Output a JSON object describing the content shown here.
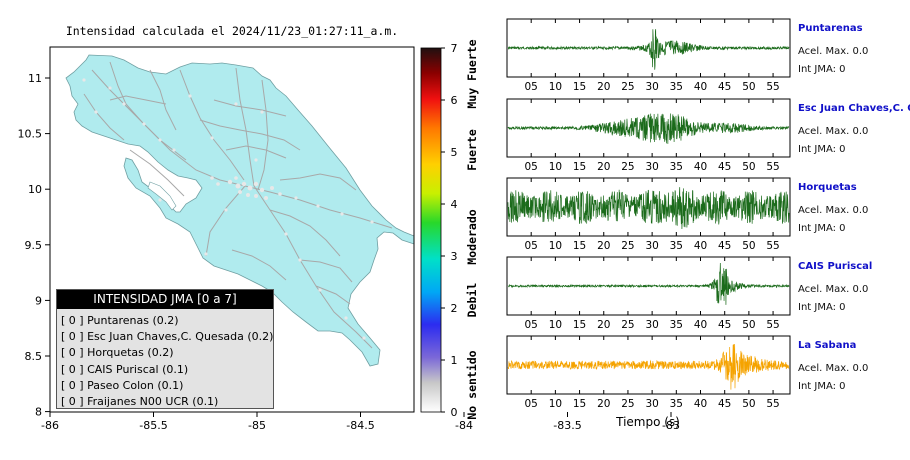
{
  "map": {
    "title": "Intensidad calculada el 2024/11/23_01:27:11_a.m.",
    "x_ticks": [
      "-86",
      "-85.5",
      "-85",
      "-84.5",
      "-84",
      "-83.5",
      "-83"
    ],
    "y_ticks": [
      "11",
      "10.5",
      "10",
      "9.5",
      "9",
      "8.5",
      "8"
    ],
    "colorbar": {
      "ticks": [
        "0",
        "1",
        "2",
        "3",
        "4",
        "5",
        "6",
        "7"
      ],
      "labels": [
        "No sentido",
        "Debil",
        "Moderado",
        "Fuerte",
        "Muy Fuerte"
      ]
    },
    "legend": {
      "title": "INTENSIDAD JMA [0 a 7]",
      "items": [
        "[ 0 ] Puntarenas (0.2)",
        "[ 0 ] Esc Juan Chaves,C. Quesada (0.2)",
        "[ 0 ] Horquetas (0.2)",
        "[ 0 ] CAIS Puriscal (0.1)",
        "[ 0 ] Paseo Colon (0.1)",
        "[ 0 ] Fraijanes N00 UCR (0.1)"
      ]
    },
    "colors": {
      "land": "#b0ebee",
      "sea": "#ffffff",
      "roads": "#a8a8a8"
    }
  },
  "waveforms": {
    "x_axis_label": "Tiempo (s)",
    "x_ticks": [
      "05",
      "10",
      "15",
      "20",
      "25",
      "30",
      "35",
      "40",
      "45",
      "50",
      "55"
    ],
    "stations": [
      {
        "name": "Puntarenas",
        "acel": "Acel. Max. 0.0",
        "int": "Int JMA: 0",
        "color": "#1b6b1b"
      },
      {
        "name": "Esc Juan Chaves,C. Qu",
        "acel": "Acel. Max. 0.0",
        "int": "Int JMA: 0",
        "color": "#1b6b1b"
      },
      {
        "name": "Horquetas",
        "acel": "Acel. Max. 0.0",
        "int": "Int JMA: 0",
        "color": "#1b6b1b"
      },
      {
        "name": "CAIS Puriscal",
        "acel": "Acel. Max. 0.0",
        "int": "Int JMA: 0",
        "color": "#1b6b1b"
      },
      {
        "name": "La Sabana",
        "acel": "Acel. Max. 0.0",
        "int": "Int JMA: 0",
        "color": "#f5a300"
      }
    ]
  }
}
